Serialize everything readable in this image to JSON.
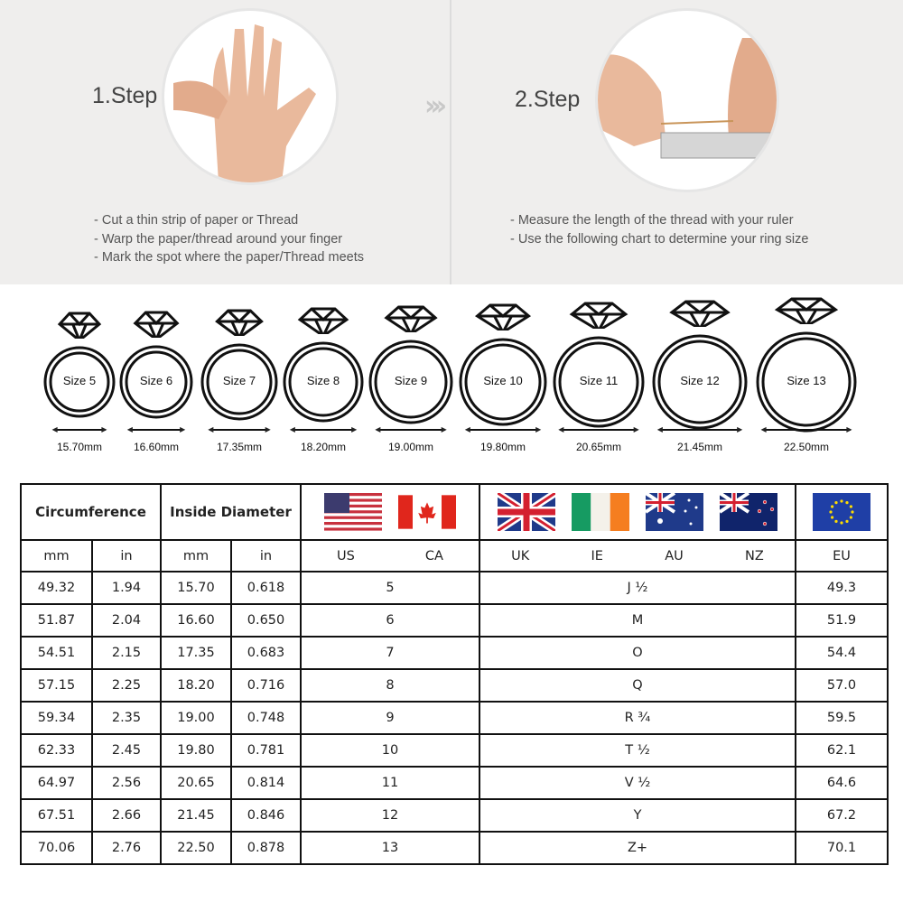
{
  "steps": [
    {
      "title": "1.Step",
      "instructions": [
        "- Cut a thin strip of paper or Thread",
        "- Warp the paper/thread around your finger",
        "- Mark the spot where the paper/Thread meets"
      ]
    },
    {
      "title": "2.Step",
      "instructions": [
        "- Measure the length of the thread with your ruler",
        "- Use the following chart to determine your ring size"
      ]
    }
  ],
  "arrow_icon": "chevrons-right-icon",
  "rings": [
    {
      "label": "Size 5",
      "mm": "15.70mm"
    },
    {
      "label": "Size 6",
      "mm": "16.60mm"
    },
    {
      "label": "Size 7",
      "mm": "17.35mm"
    },
    {
      "label": "Size 8",
      "mm": "18.20mm"
    },
    {
      "label": "Size 9",
      "mm": "19.00mm"
    },
    {
      "label": "Size 10",
      "mm": "19.80mm"
    },
    {
      "label": "Size 11",
      "mm": "20.65mm"
    },
    {
      "label": "Size 12",
      "mm": "21.45mm"
    },
    {
      "label": "Size 13",
      "mm": "22.50mm"
    }
  ],
  "table": {
    "headers": {
      "circumference": "Circumference",
      "inside_diameter": "Inside Diameter"
    },
    "flags": [
      "us-flag",
      "ca-flag",
      "uk-flag",
      "ie-flag",
      "au-flag",
      "nz-flag",
      "eu-flag"
    ],
    "sub": {
      "c_mm": "mm",
      "c_in": "in",
      "d_mm": "mm",
      "d_in": "in",
      "us": "US",
      "ca": "CA",
      "uk": "UK",
      "ie": "IE",
      "au": "AU",
      "nz": "NZ",
      "eu": "EU"
    },
    "rows": [
      [
        "49.32",
        "1.94",
        "15.70",
        "0.618",
        "5",
        "J ½",
        "49.3"
      ],
      [
        "51.87",
        "2.04",
        "16.60",
        "0.650",
        "6",
        "M",
        "51.9"
      ],
      [
        "54.51",
        "2.15",
        "17.35",
        "0.683",
        "7",
        "O",
        "54.4"
      ],
      [
        "57.15",
        "2.25",
        "18.20",
        "0.716",
        "8",
        "Q",
        "57.0"
      ],
      [
        "59.34",
        "2.35",
        "19.00",
        "0.748",
        "9",
        "R ¾",
        "59.5"
      ],
      [
        "62.33",
        "2.45",
        "19.80",
        "0.781",
        "10",
        "T ½",
        "62.1"
      ],
      [
        "64.97",
        "2.56",
        "20.65",
        "0.814",
        "11",
        "V ½",
        "64.6"
      ],
      [
        "67.51",
        "2.66",
        "21.45",
        "0.846",
        "12",
        "Y",
        "67.2"
      ],
      [
        "70.06",
        "2.76",
        "22.50",
        "0.878",
        "13",
        "Z+",
        "70.1"
      ]
    ]
  }
}
